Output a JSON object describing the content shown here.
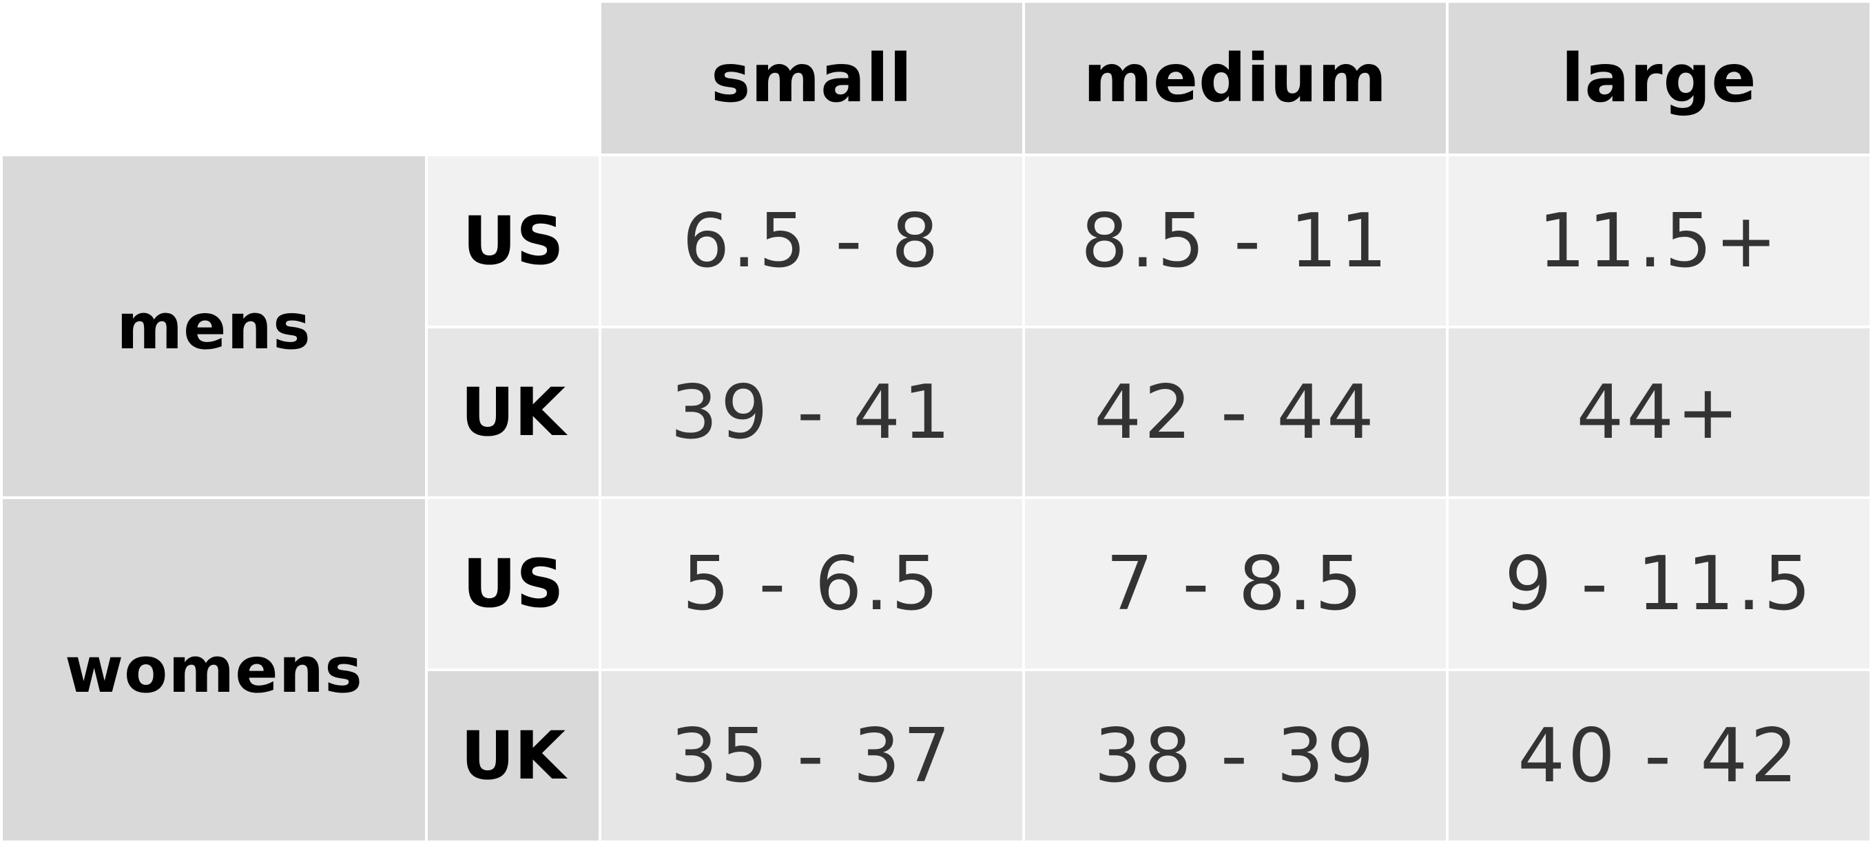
{
  "sizes": [
    "small",
    "medium",
    "large"
  ],
  "groups": [
    {
      "label": "mens",
      "rows": [
        {
          "region": "US",
          "values": [
            "6.5 - 8",
            "8.5 - 11",
            "11.5+"
          ]
        },
        {
          "region": "UK",
          "values": [
            "39 - 41",
            "42 - 44",
            "44+"
          ]
        }
      ]
    },
    {
      "label": "womens",
      "rows": [
        {
          "region": "US",
          "values": [
            "5 - 6.5",
            "7 - 8.5",
            "9 - 11.5"
          ]
        },
        {
          "region": "UK",
          "values": [
            "35 - 37",
            "38 - 39",
            "40 - 42"
          ]
        }
      ]
    }
  ],
  "colors": {
    "header_bg": "#d9d9d9",
    "row_light": "#f1f1f1",
    "row_mid": "#e6e6e6",
    "value_text": "#333333",
    "header_text": "#000000"
  }
}
